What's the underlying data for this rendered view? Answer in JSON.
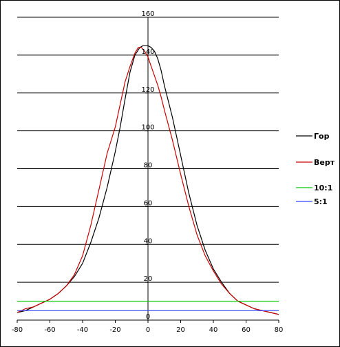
{
  "chart_data": {
    "type": "line",
    "title": "",
    "xlabel": "",
    "ylabel": "",
    "xlim": [
      -80,
      80
    ],
    "ylim": [
      0,
      160
    ],
    "x_ticks": [
      -80,
      -60,
      -40,
      -20,
      0,
      20,
      40,
      60,
      80
    ],
    "y_ticks": [
      0,
      20,
      40,
      60,
      80,
      100,
      120,
      140,
      160
    ],
    "grid": "horizontal",
    "legend_position": "right",
    "series": [
      {
        "name": "Гор",
        "color": "#000000",
        "x": [
          -80,
          -75,
          -70,
          -65,
          -60,
          -55,
          -50,
          -45,
          -40,
          -35,
          -30,
          -25,
          -20,
          -17,
          -14,
          -11,
          -8,
          -5,
          -3,
          -1,
          0,
          2,
          4,
          6,
          8,
          10,
          15,
          20,
          25,
          30,
          35,
          40,
          45,
          50,
          55,
          60,
          65,
          70,
          75,
          80
        ],
        "y": [
          4,
          5,
          7,
          9,
          11,
          14,
          18,
          23,
          30,
          41,
          54,
          70,
          89,
          102,
          117,
          131,
          140,
          144,
          145,
          145,
          145,
          144,
          142,
          138,
          132,
          124,
          107,
          87,
          67,
          50,
          37,
          27,
          20,
          14,
          10,
          8,
          6,
          5,
          4,
          3
        ]
      },
      {
        "name": "Верт",
        "color": "#cc0000",
        "x": [
          -80,
          -75,
          -70,
          -65,
          -60,
          -55,
          -50,
          -45,
          -40,
          -35,
          -30,
          -25,
          -20,
          -17,
          -14,
          -11,
          -8,
          -6,
          -4,
          -2,
          0,
          2,
          4,
          6,
          8,
          10,
          15,
          20,
          25,
          30,
          35,
          40,
          45,
          50,
          55,
          60,
          65,
          70,
          75,
          80
        ],
        "y": [
          4,
          6,
          7,
          9,
          11,
          14,
          18,
          24,
          34,
          50,
          69,
          88,
          102,
          114,
          126,
          134,
          141,
          144,
          144,
          142,
          139,
          134,
          129,
          124,
          118,
          111,
          95,
          77,
          60,
          45,
          34,
          26,
          19,
          14,
          10,
          8,
          6,
          5,
          4,
          3
        ]
      },
      {
        "name": "10:1",
        "color": "#00cc00",
        "x": [
          -80,
          80
        ],
        "y": [
          10,
          10
        ]
      },
      {
        "name": "5:1",
        "color": "#3344ff",
        "x": [
          -80,
          80
        ],
        "y": [
          5,
          5
        ]
      }
    ]
  }
}
